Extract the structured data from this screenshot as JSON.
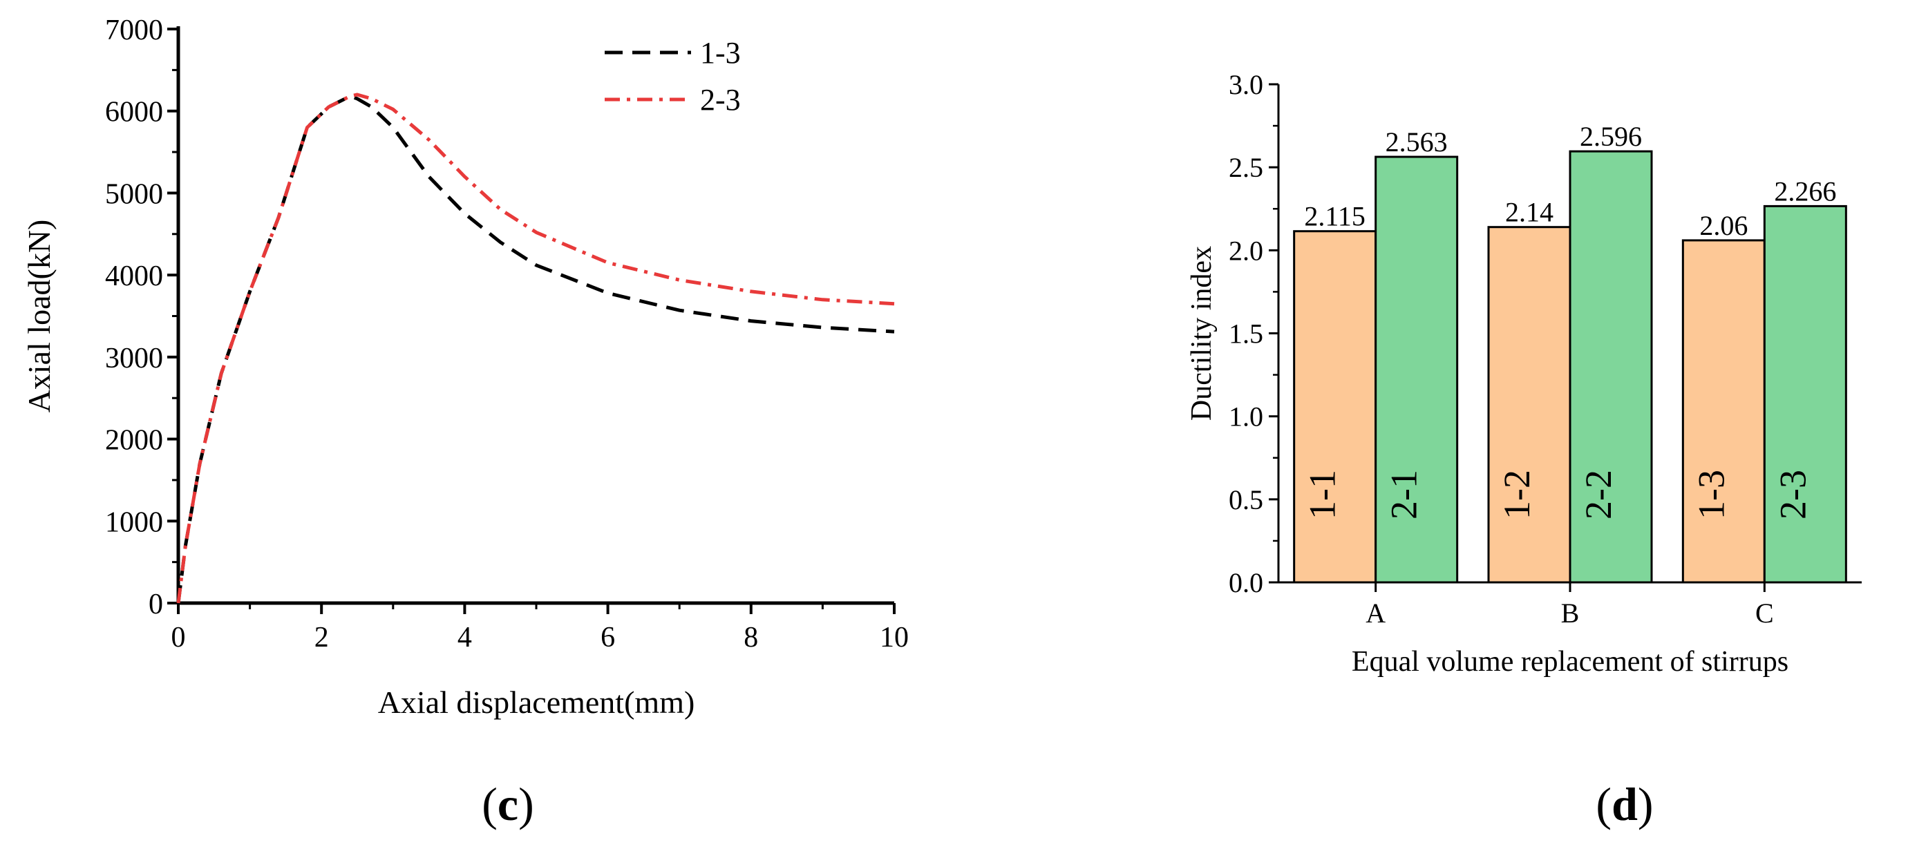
{
  "panels": {
    "c": {
      "label_open": "(",
      "label_letter": "c",
      "label_close": ")"
    },
    "d": {
      "label_open": "(",
      "label_letter": "d",
      "label_close": ")"
    }
  },
  "chart_data": [
    {
      "type": "line",
      "panel": "c",
      "title": "",
      "xlabel": "Axial displacement(mm)",
      "ylabel": "Axial load(kN)",
      "xlim": [
        0,
        10
      ],
      "ylim": [
        0,
        7000
      ],
      "xticks": [
        0,
        2,
        4,
        6,
        8,
        10
      ],
      "yticks": [
        0,
        1000,
        2000,
        3000,
        4000,
        5000,
        6000,
        7000
      ],
      "grid": false,
      "legend": "top-center",
      "series": [
        {
          "name": "1-3",
          "color": "#000000",
          "style": "dashed",
          "x": [
            0,
            0.1,
            0.3,
            0.6,
            1.0,
            1.4,
            1.8,
            2.1,
            2.4,
            2.5,
            2.7,
            3.0,
            3.5,
            4.0,
            4.5,
            5.0,
            6.0,
            7.0,
            8.0,
            9.0,
            10.0
          ],
          "y": [
            0,
            700,
            1700,
            2800,
            3800,
            4700,
            5800,
            6050,
            6180,
            6150,
            6050,
            5800,
            5200,
            4750,
            4400,
            4120,
            3780,
            3570,
            3440,
            3360,
            3310
          ]
        },
        {
          "name": "2-3",
          "color": "#e83a3a",
          "style": "dashdot",
          "x": [
            0,
            0.1,
            0.3,
            0.6,
            1.0,
            1.4,
            1.8,
            2.1,
            2.4,
            2.5,
            2.7,
            3.0,
            3.5,
            4.0,
            4.5,
            5.0,
            6.0,
            7.0,
            8.0,
            9.0,
            10.0
          ],
          "y": [
            0,
            700,
            1700,
            2800,
            3800,
            4700,
            5800,
            6050,
            6180,
            6200,
            6150,
            6020,
            5650,
            5200,
            4800,
            4520,
            4150,
            3940,
            3800,
            3700,
            3650
          ]
        }
      ]
    },
    {
      "type": "bar",
      "panel": "d",
      "title": "",
      "xlabel": "Equal volume replacement of stirrups",
      "ylabel": "Ductility index",
      "ylim": [
        0,
        3.0
      ],
      "yticks": [
        "0.0",
        "0.5",
        "1.0",
        "1.5",
        "2.0",
        "2.5",
        "3.0"
      ],
      "grid": false,
      "categories": [
        "A",
        "B",
        "C"
      ],
      "series": [
        {
          "name": "1",
          "color": "#fdc896",
          "values": [
            2.115,
            2.14,
            2.06
          ],
          "value_labels": [
            "2.115",
            "2.14",
            "2.06"
          ],
          "bar_labels": [
            "1-1",
            "1-2",
            "1-3"
          ]
        },
        {
          "name": "2",
          "color": "#7fd69a",
          "values": [
            2.563,
            2.596,
            2.266
          ],
          "value_labels": [
            "2.563",
            "2.596",
            "2.266"
          ],
          "bar_labels": [
            "2-1",
            "2-2",
            "2-3"
          ]
        }
      ]
    }
  ]
}
